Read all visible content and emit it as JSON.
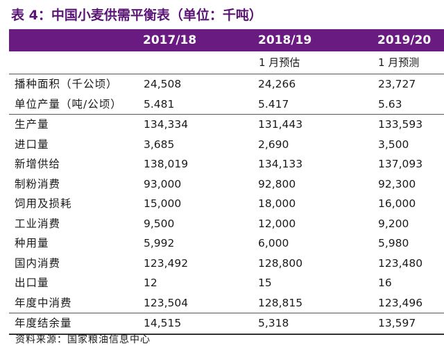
{
  "title": "表 4：中国小麦供需平衡表（单位：千吨）",
  "columns": [
    "2017/18",
    "2018/19",
    "2019/20"
  ],
  "subheaders": [
    "",
    "1 月预估",
    "1 月预测"
  ],
  "rows": [
    {
      "label": "播种面积（千公顷）",
      "values": [
        "24,508",
        "24,266",
        "23,727"
      ]
    },
    {
      "label": "单位产量（吨/公顷）",
      "values": [
        "5.481",
        "5.417",
        "5.63"
      ]
    },
    {
      "label": "生产量",
      "values": [
        "134,334",
        "131,443",
        "133,593"
      ]
    },
    {
      "label": "进口量",
      "values": [
        "3,685",
        "2,690",
        "3,500"
      ]
    },
    {
      "label": "新增供给",
      "values": [
        "138,019",
        "134,133",
        "137,093"
      ]
    },
    {
      "label": "制粉消费",
      "values": [
        "93,000",
        "92,800",
        "92,300"
      ]
    },
    {
      "label": "饲用及损耗",
      "values": [
        "15,000",
        "18,000",
        "16,000"
      ]
    },
    {
      "label": "工业消费",
      "values": [
        "9,500",
        "12,000",
        "9,200"
      ]
    },
    {
      "label": "种用量",
      "values": [
        "5,992",
        "6,000",
        "5,980"
      ]
    },
    {
      "label": "国内消费",
      "values": [
        "123,492",
        "128,800",
        "123,480"
      ]
    },
    {
      "label": "出口量",
      "values": [
        "12",
        "15",
        "16"
      ]
    },
    {
      "label": "年度中消费",
      "values": [
        "123,504",
        "128,815",
        "123,496"
      ]
    },
    {
      "label": "年度结余量",
      "values": [
        "14,515",
        "5,318",
        "13,597"
      ]
    }
  ],
  "source": "资料来源：国家粮油信息中心",
  "colors": {
    "header_bg": "#6a1b82",
    "title": "#5a1474"
  }
}
